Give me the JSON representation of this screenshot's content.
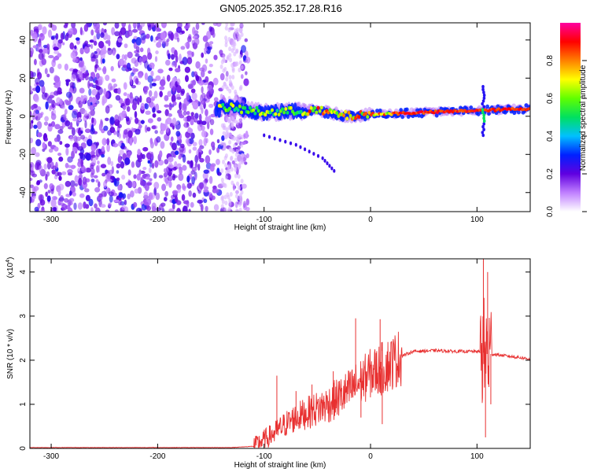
{
  "figure": {
    "title": "GN05.2025.352.17.28.R16"
  },
  "chart_data": [
    {
      "type": "heatmap",
      "xlabel": "Height of straight line (km)",
      "ylabel": "Frequency (Hz)",
      "xlim": [
        -320,
        150
      ],
      "ylim": [
        -50,
        49
      ],
      "xticks": [
        -300,
        -200,
        -100,
        0,
        100
      ],
      "yticks": [
        -40,
        -20,
        0,
        20,
        40
      ],
      "colorbar": {
        "label": "Normalized spectral amplitude",
        "range": [
          0,
          1
        ],
        "ticks": [
          0.0,
          0.2,
          0.4,
          0.6,
          0.8
        ],
        "tick_labels": [
          "0.0",
          "0.2",
          "0.4",
          "0.6",
          "0.8"
        ],
        "colors": [
          "#ffffff",
          "#c080ff",
          "#6000e0",
          "#0020ff",
          "#00c0ff",
          "#00e060",
          "#60ff00",
          "#ffff00",
          "#ff8000",
          "#ff0000",
          "#ff00a0"
        ]
      },
      "regions": {
        "noise_x_range": [
          -320,
          -125
        ],
        "noise_level": 0.15,
        "signal_start": -145,
        "signal_frequency_hz": [
          [
            -140,
            5
          ],
          [
            -100,
            2
          ],
          [
            -50,
            3
          ],
          [
            -20,
            0
          ],
          [
            0,
            1
          ],
          [
            50,
            2
          ],
          [
            100,
            3
          ],
          [
            150,
            4
          ]
        ],
        "secondary_branch": [
          [
            -100,
            -10
          ],
          [
            -70,
            -15
          ],
          [
            -45,
            -22
          ],
          [
            -32,
            -30
          ]
        ],
        "vertical_streak_x": 106
      }
    },
    {
      "type": "line",
      "xlabel": "Height of straight line (km)",
      "ylabel": "SNR (10 * v/v)",
      "yscale_label": "(x10",
      "yscale_exp": "4",
      "xlim": [
        -320,
        150
      ],
      "ylim": [
        0,
        4.3
      ],
      "xticks": [
        -300,
        -200,
        -100,
        0,
        100
      ],
      "yticks": [
        0,
        1,
        2,
        3,
        4
      ],
      "series": [
        {
          "color": "#e83030",
          "envelope": [
            [
              -320,
              0.02
            ],
            [
              -130,
              0.02
            ],
            [
              -110,
              0.05
            ],
            [
              -100,
              0.2
            ],
            [
              -90,
              0.35
            ],
            [
              -80,
              0.55
            ],
            [
              -70,
              0.7
            ],
            [
              -60,
              0.8
            ],
            [
              -50,
              0.9
            ],
            [
              -40,
              1.0
            ],
            [
              -30,
              1.15
            ],
            [
              -20,
              1.3
            ],
            [
              -10,
              1.5
            ],
            [
              0,
              1.7
            ],
            [
              10,
              1.8
            ],
            [
              20,
              1.95
            ],
            [
              30,
              2.1
            ],
            [
              40,
              2.2
            ],
            [
              60,
              2.22
            ],
            [
              80,
              2.2
            ],
            [
              100,
              2.2
            ],
            [
              110,
              2.15
            ],
            [
              120,
              2.12
            ],
            [
              150,
              2.03
            ]
          ],
          "spikes": [
            [
              -88,
              1.65
            ],
            [
              -70,
              1.3
            ],
            [
              -55,
              1.45
            ],
            [
              -45,
              1.1
            ],
            [
              -35,
              1.75
            ],
            [
              -28,
              1.2
            ],
            [
              -14,
              2.95
            ],
            [
              -9,
              0.7
            ],
            [
              9,
              2.93
            ],
            [
              11,
              0.55
            ],
            [
              106,
              4.3
            ],
            [
              108,
              0.25
            ],
            [
              110,
              4.0
            ],
            [
              113,
              1.0
            ]
          ]
        }
      ]
    }
  ]
}
